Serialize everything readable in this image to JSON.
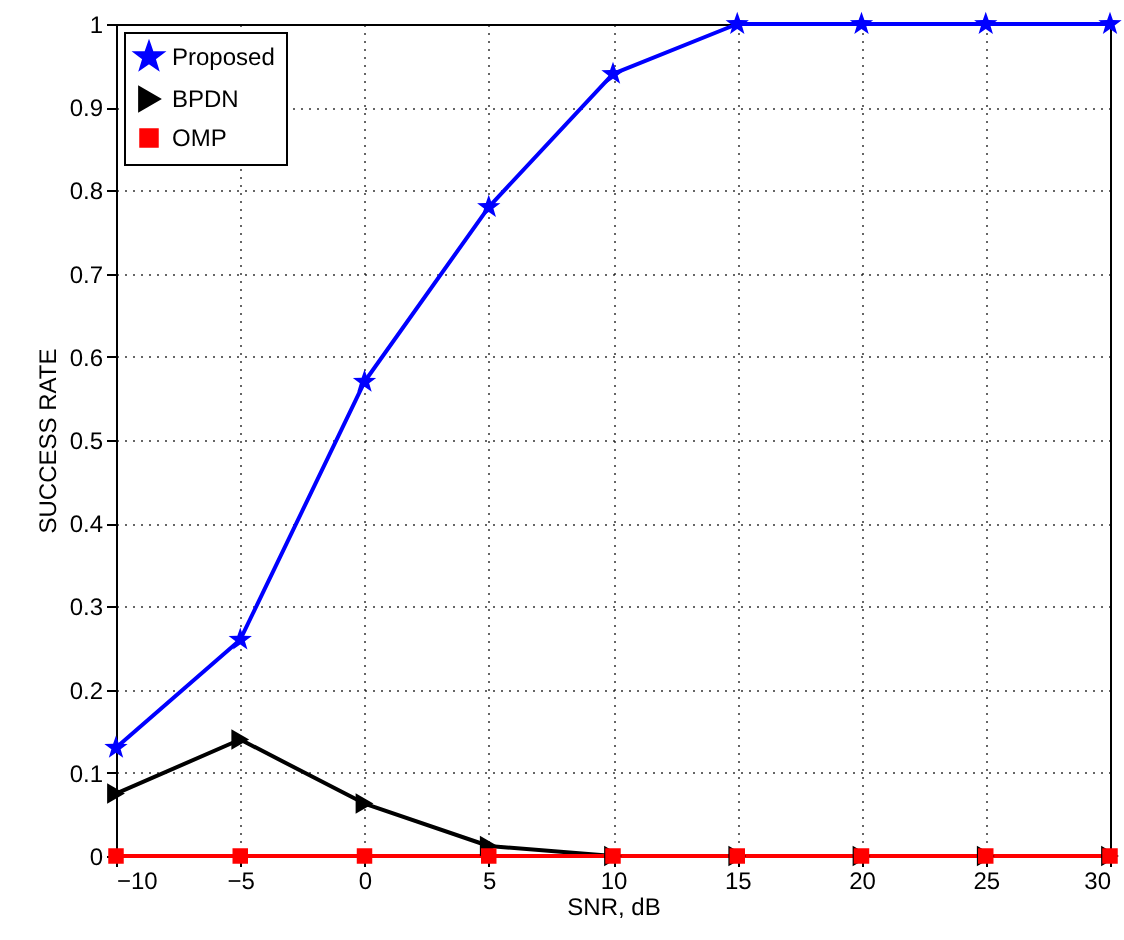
{
  "chart_data": {
    "type": "line",
    "xlabel": "SNR, dB",
    "ylabel": "SUCCESS RATE",
    "x": [
      -10,
      -5,
      0,
      5,
      10,
      15,
      20,
      25,
      30
    ],
    "series": [
      {
        "name": "Proposed",
        "color": "#0000ff",
        "marker": "star",
        "values": [
          0.13,
          0.26,
          0.57,
          0.78,
          0.94,
          1.0,
          1.0,
          1.0,
          1.0
        ]
      },
      {
        "name": "BPDN",
        "color": "#000000",
        "marker": "triangle",
        "values": [
          0.075,
          0.14,
          0.063,
          0.012,
          0,
          0,
          0,
          0,
          0
        ]
      },
      {
        "name": "OMP",
        "color": "#ff0000",
        "marker": "square",
        "values": [
          0,
          0,
          0,
          0,
          0,
          0,
          0,
          0,
          0
        ]
      }
    ],
    "xlim": [
      -10,
      30
    ],
    "xticks": [
      -10,
      -5,
      0,
      5,
      10,
      15,
      20,
      25,
      30
    ],
    "ylim": [
      0,
      1
    ],
    "yticks": [
      0,
      0.1,
      0.2,
      0.3,
      0.4,
      0.5,
      0.6,
      0.7,
      0.8,
      0.9,
      1
    ],
    "grid": true,
    "legend": "top left",
    "line_style": "solid"
  }
}
